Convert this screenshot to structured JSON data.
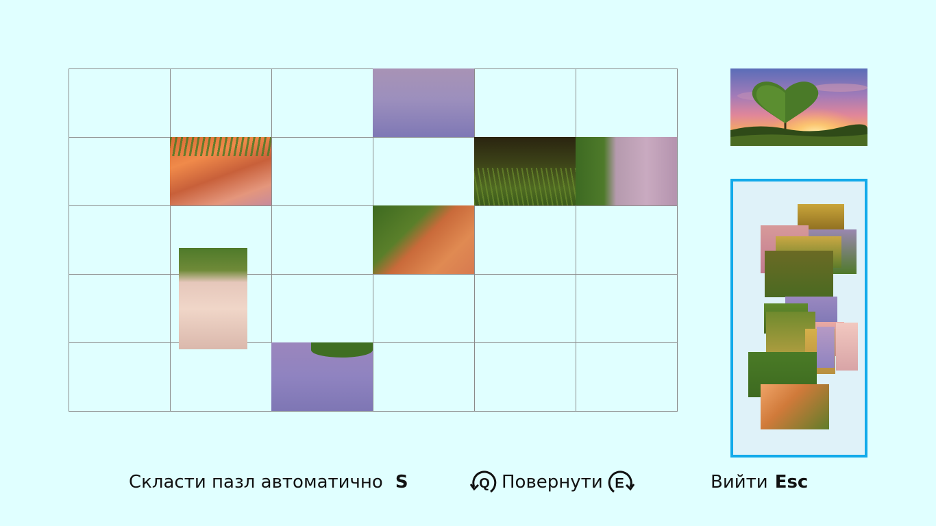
{
  "board": {
    "cols": 6,
    "rows": 5,
    "grid_color": "#8a8a8a",
    "placed_pieces": [
      {
        "col": 3,
        "row": 0,
        "theme": "lavender-sky"
      },
      {
        "col": 1,
        "row": 1,
        "theme": "orange-sky-grass-top"
      },
      {
        "col": 4,
        "row": 1,
        "theme": "dark-grass"
      },
      {
        "col": 5,
        "row": 1,
        "theme": "bush-edge-pink"
      },
      {
        "col": 3,
        "row": 2,
        "theme": "orange-bush-diagonal"
      },
      {
        "col": 2,
        "row": 4,
        "theme": "lavender-bush-top"
      }
    ],
    "floating_piece": {
      "theme": "pale-bush-top",
      "orientation": "rotated"
    }
  },
  "preview": {
    "description_icon": "heart-tree-sunset-image"
  },
  "tray": {
    "border_color": "#12aaea",
    "background": "#dff2f9",
    "piece_count": 14
  },
  "controls": {
    "auto_label": "Скласти пазл автоматично",
    "auto_key": "S",
    "rotate_left_key": "Q",
    "rotate_label": "Повернути",
    "rotate_right_key": "E",
    "exit_label": "Вийти",
    "exit_key": "Esc"
  }
}
